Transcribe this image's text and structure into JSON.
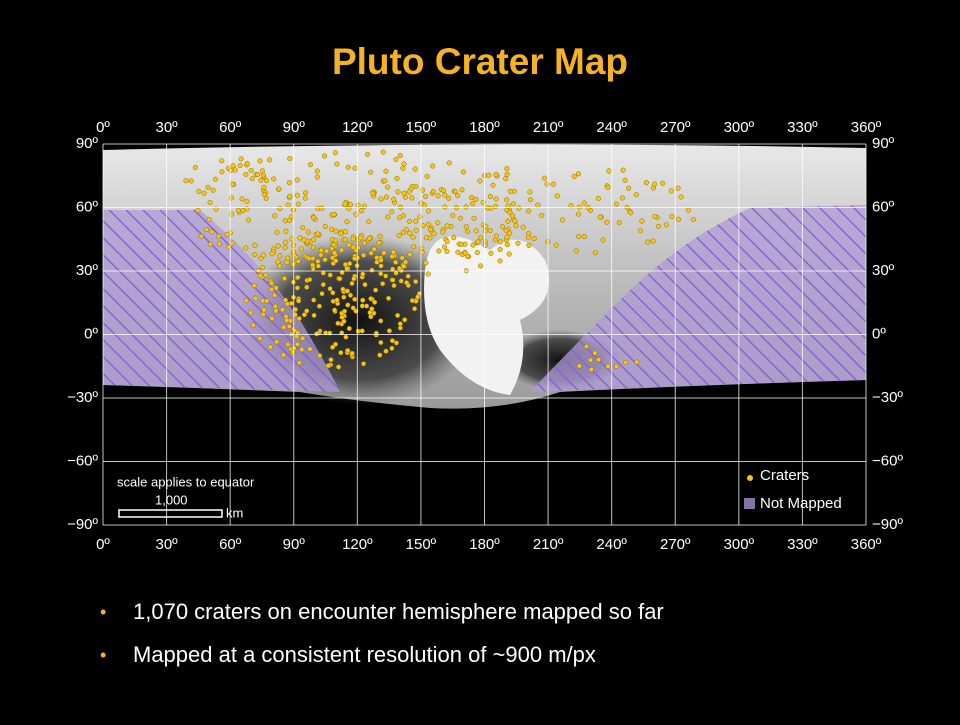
{
  "title": "Pluto Crater Map",
  "map": {
    "xlim": [
      0,
      360
    ],
    "ylim": [
      -90,
      90
    ],
    "xticks": [
      {
        "value": 0,
        "label": "0º"
      },
      {
        "value": 30,
        "label": "30º"
      },
      {
        "value": 60,
        "label": "60º"
      },
      {
        "value": 90,
        "label": "90º"
      },
      {
        "value": 120,
        "label": "120º"
      },
      {
        "value": 150,
        "label": "150º"
      },
      {
        "value": 180,
        "label": "180º"
      },
      {
        "value": 210,
        "label": "210º"
      },
      {
        "value": 240,
        "label": "240º"
      },
      {
        "value": 270,
        "label": "270º"
      },
      {
        "value": 300,
        "label": "300º"
      },
      {
        "value": 330,
        "label": "330º"
      },
      {
        "value": 360,
        "label": "360º"
      }
    ],
    "yticks": [
      {
        "value": 90,
        "label": "90º"
      },
      {
        "value": 60,
        "label": "60º"
      },
      {
        "value": 30,
        "label": "30º"
      },
      {
        "value": 0,
        "label": "0º"
      },
      {
        "value": -30,
        "label": "−30º"
      },
      {
        "value": -60,
        "label": "−60º"
      },
      {
        "value": -90,
        "label": "−90º"
      }
    ],
    "legend": [
      "Craters",
      "Not Mapped"
    ],
    "scale": {
      "note": "scale applies to equator",
      "length": "1,000",
      "unit": "km"
    }
  },
  "bullets": [
    "1,070 craters on encounter hemisphere mapped so far",
    "Mapped at a consistent resolution of ~900 m/px"
  ]
}
